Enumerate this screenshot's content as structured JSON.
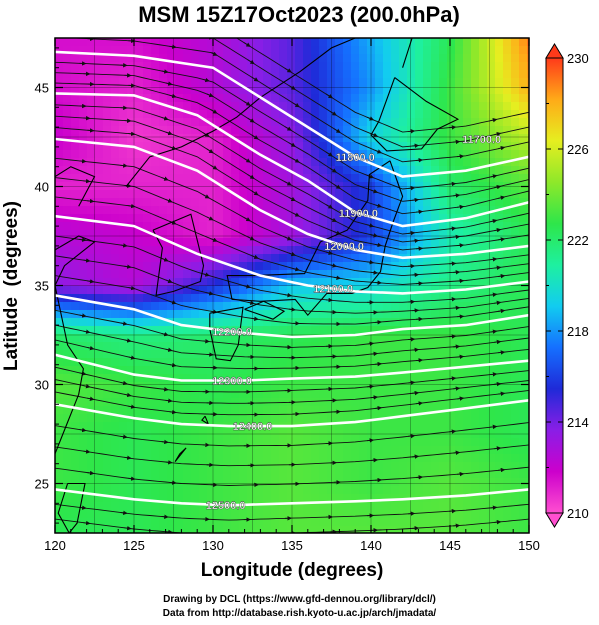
{
  "chart_data": {
    "type": "heatmap",
    "title": "MSM 15Z17Oct2023 (200.0hPa)",
    "xlabel": "Longitude (degrees)",
    "ylabel": "Latitude  (degrees)",
    "xlim": [
      120,
      150
    ],
    "ylim": [
      22.5,
      47.5
    ],
    "x_ticks": [
      "120",
      "125",
      "130",
      "135",
      "140",
      "145",
      "150"
    ],
    "y_ticks": [
      "25",
      "30",
      "35",
      "40",
      "45"
    ],
    "colorbar": {
      "min": 210,
      "max": 230,
      "tick_labels": [
        "230",
        "226",
        "222",
        "218",
        "214",
        "210"
      ],
      "colors": [
        "#ff4fd0",
        "#cc00cc",
        "#8a1ee6",
        "#1f2ad8",
        "#1570ff",
        "#12ccf0",
        "#1ef0a0",
        "#2ee64a",
        "#8ee82a",
        "#e6ee20",
        "#ffaa18",
        "#ff3a1a"
      ]
    },
    "temperature_field": {
      "lon": [
        120,
        125,
        130,
        135,
        140,
        145,
        150
      ],
      "lat": [
        47.5,
        45,
        42.5,
        40,
        37.5,
        35,
        32.5,
        30,
        27.5,
        25,
        22.5
      ],
      "values": [
        [
          211.5,
          211.5,
          212.5,
          214.5,
          218.5,
          222.5,
          229.0
        ],
        [
          211.5,
          211.0,
          212.5,
          214.5,
          218.0,
          223.0,
          228.0
        ],
        [
          212.0,
          210.5,
          211.0,
          213.5,
          219.5,
          223.0,
          225.5
        ],
        [
          211.0,
          211.0,
          211.0,
          213.0,
          216.0,
          222.0,
          223.5
        ],
        [
          212.5,
          212.0,
          211.0,
          213.0,
          216.0,
          220.5,
          222.5
        ],
        [
          213.5,
          212.5,
          215.5,
          219.0,
          219.5,
          221.5,
          222.5
        ],
        [
          222.0,
          221.5,
          222.0,
          222.5,
          223.0,
          223.0,
          222.5
        ],
        [
          223.5,
          223.0,
          222.5,
          223.0,
          223.0,
          223.0,
          222.5
        ],
        [
          223.0,
          222.5,
          223.0,
          223.5,
          223.0,
          223.0,
          222.5
        ],
        [
          223.0,
          222.5,
          223.0,
          223.5,
          223.0,
          223.5,
          223.0
        ],
        [
          222.5,
          222.5,
          223.0,
          223.5,
          223.5,
          223.5,
          223.0
        ]
      ]
    },
    "height_contours": [
      {
        "label": "11800.0",
        "points": [
          [
            120,
            46.8
          ],
          [
            125,
            46.6
          ],
          [
            130,
            46.0
          ],
          [
            133,
            44.5
          ],
          [
            136,
            43.0
          ],
          [
            139,
            41.5
          ],
          [
            142,
            40.5
          ],
          [
            146,
            40.8
          ],
          [
            150,
            41.5
          ]
        ]
      },
      {
        "label": "11900.0",
        "points": [
          [
            120,
            44.7
          ],
          [
            125,
            44.6
          ],
          [
            129,
            43.6
          ],
          [
            133,
            41.6
          ],
          [
            136,
            40.3
          ],
          [
            139,
            38.7
          ],
          [
            142,
            38.0
          ],
          [
            146,
            38.4
          ],
          [
            150,
            39.2
          ]
        ]
      },
      {
        "label": "12000.0",
        "points": [
          [
            120,
            42.4
          ],
          [
            125,
            42.0
          ],
          [
            129,
            40.8
          ],
          [
            133,
            38.8
          ],
          [
            136,
            37.6
          ],
          [
            139,
            36.8
          ],
          [
            142,
            36.4
          ],
          [
            146,
            36.6
          ],
          [
            150,
            37.0
          ]
        ]
      },
      {
        "label": "12100.0",
        "points": [
          [
            120,
            38.5
          ],
          [
            125,
            38.0
          ],
          [
            129,
            36.6
          ],
          [
            133,
            35.5
          ],
          [
            136,
            35.0
          ],
          [
            139,
            34.7
          ],
          [
            142,
            34.6
          ],
          [
            146,
            34.8
          ],
          [
            150,
            35.2
          ]
        ]
      },
      {
        "label": "12200.0",
        "points": [
          [
            120,
            34.5
          ],
          [
            125,
            33.8
          ],
          [
            128,
            33.0
          ],
          [
            132,
            32.6
          ],
          [
            135,
            32.4
          ],
          [
            139,
            32.5
          ],
          [
            142,
            32.8
          ],
          [
            146,
            33.0
          ],
          [
            150,
            33.5
          ]
        ]
      },
      {
        "label": "12300.0",
        "points": [
          [
            120,
            31.5
          ],
          [
            125,
            30.5
          ],
          [
            128,
            30.2
          ],
          [
            132,
            30.2
          ],
          [
            135,
            30.3
          ],
          [
            139,
            30.4
          ],
          [
            142,
            30.6
          ],
          [
            146,
            30.9
          ],
          [
            150,
            31.2
          ]
        ]
      },
      {
        "label": "12400.0",
        "points": [
          [
            120,
            29.0
          ],
          [
            125,
            28.3
          ],
          [
            128,
            28.0
          ],
          [
            131,
            27.9
          ],
          [
            135,
            27.9
          ],
          [
            139,
            28.1
          ],
          [
            142,
            28.4
          ],
          [
            146,
            28.8
          ],
          [
            150,
            29.2
          ]
        ]
      },
      {
        "label": "12500.0",
        "points": [
          [
            120,
            24.7
          ],
          [
            125,
            24.2
          ],
          [
            128,
            24.0
          ],
          [
            131,
            23.9
          ],
          [
            135,
            24.0
          ],
          [
            139,
            24.1
          ],
          [
            142,
            24.2
          ],
          [
            146,
            24.4
          ],
          [
            150,
            24.7
          ]
        ]
      }
    ],
    "contour_label_positions": [
      {
        "label": "11800.0",
        "lon": 139.0
      },
      {
        "label": "11900.0",
        "lon": 139.2
      },
      {
        "label": "12000.0",
        "lon": 138.3
      },
      {
        "label": "12100.0",
        "lon": 137.6
      },
      {
        "label": "12200.0",
        "lon": 131.2
      },
      {
        "label": "12300.0",
        "lon": 131.2
      },
      {
        "label": "12400.0",
        "lon": 132.5
      },
      {
        "label": "12500.0",
        "lon": 130.8
      },
      {
        "label": "11700.0",
        "lon": 147.0
      }
    ]
  },
  "credits": {
    "line1": "Drawing by DCL (https://www.gfd-dennou.org/library/dcl/)",
    "line2": "Data from http://database.rish.kyoto-u.ac.jp/arch/jmadata/"
  }
}
